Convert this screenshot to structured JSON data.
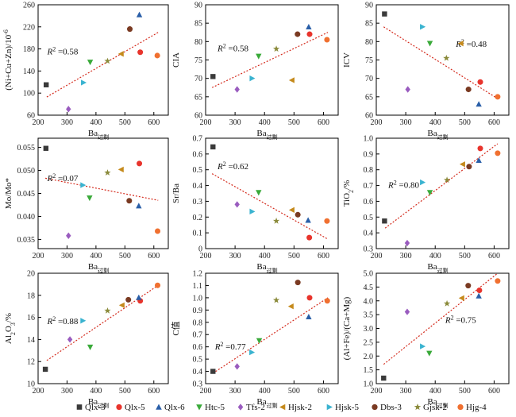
{
  "chart_data": [
    {
      "type": "scatter",
      "xlabel": "Ba",
      "xlabel_sub": "过剩",
      "ylabel": "(Ni+Cu+Zn)/10⁻⁶",
      "xlim": [
        200,
        650
      ],
      "ylim": [
        60,
        260
      ],
      "xticks": [
        200,
        300,
        400,
        500,
        600
      ],
      "yticks": [
        60,
        100,
        140,
        180,
        220,
        260
      ],
      "r2_label": "R² =0.58",
      "trend": [
        [
          230,
          93
        ],
        [
          615,
          210
        ]
      ],
      "points": {
        "Qlx-3": [
          228,
          115
        ],
        "Qlx-5": [
          553,
          174
        ],
        "Qlx-6": [
          550,
          242
        ],
        "Htc-5": [
          380,
          156
        ],
        "Tfs-2": [
          305,
          71
        ],
        "Hjsk-2": [
          487,
          171
        ],
        "Hjsk-5": [
          357,
          119
        ],
        "Dbs-3": [
          517,
          216
        ],
        "Gjsk-2": [
          440,
          158
        ],
        "Hjg-4": [
          612,
          168
        ]
      }
    },
    {
      "type": "scatter",
      "xlabel": "Ba",
      "xlabel_sub": "过剩",
      "ylabel": "CIA",
      "xlim": [
        200,
        650
      ],
      "ylim": [
        60,
        90
      ],
      "xticks": [
        200,
        300,
        400,
        500,
        600
      ],
      "yticks": [
        60,
        65,
        70,
        75,
        80,
        85,
        90
      ],
      "r2_label": "R² =0.58",
      "trend": [
        [
          222,
          67.5
        ],
        [
          615,
          82.5
        ]
      ],
      "points": {
        "Qlx-3": [
          225,
          70.5
        ],
        "Qlx-5": [
          553,
          82
        ],
        "Qlx-6": [
          550,
          84
        ],
        "Htc-5": [
          380,
          76
        ],
        "Tfs-2": [
          307,
          67
        ],
        "Hjsk-2": [
          493,
          69.5
        ],
        "Hjsk-5": [
          358,
          70
        ],
        "Dbs-3": [
          512,
          82
        ],
        "Gjsk-2": [
          440,
          78
        ],
        "Hjg-4": [
          612,
          80.5
        ]
      }
    },
    {
      "type": "scatter",
      "xlabel": "Ba",
      "xlabel_sub": "过剩",
      "ylabel": "ICV",
      "xlim": [
        200,
        650
      ],
      "ylim": [
        60,
        90
      ],
      "xticks": [
        200,
        300,
        400,
        500,
        600
      ],
      "yticks": [
        60,
        65,
        70,
        75,
        80,
        85,
        90
      ],
      "r2_label": "R² =0.48",
      "trend": [
        [
          225,
          84
        ],
        [
          612,
          64.5
        ]
      ],
      "points": {
        "Qlx-3": [
          228,
          87.5
        ],
        "Qlx-5": [
          553,
          69
        ],
        "Qlx-6": [
          548,
          63
        ],
        "Htc-5": [
          382,
          79.5
        ],
        "Tfs-2": [
          307,
          67
        ],
        "Hjsk-2": [
          487,
          79.5
        ],
        "Hjsk-5": [
          357,
          84
        ],
        "Dbs-3": [
          513,
          67
        ],
        "Gjsk-2": [
          438,
          75.5
        ],
        "Hjg-4": [
          612,
          65
        ]
      }
    },
    {
      "type": "scatter",
      "xlabel": "Ba",
      "xlabel_sub": "过剩",
      "ylabel": "Mo/Mo*",
      "xlim": [
        200,
        650
      ],
      "ylim": [
        0.033,
        0.057
      ],
      "xticks": [
        200,
        300,
        400,
        500,
        600
      ],
      "yticks": [
        0.035,
        0.04,
        0.045,
        0.05,
        0.055
      ],
      "ytick_labels": [
        "0.035",
        "0.040",
        "0.045",
        "0.050",
        "0.055"
      ],
      "r2_label": "R² =0.07",
      "trend": [
        [
          225,
          0.0483
        ],
        [
          615,
          0.0435
        ]
      ],
      "points": {
        "Qlx-3": [
          227,
          0.0548
        ],
        "Qlx-5": [
          550,
          0.0515
        ],
        "Qlx-6": [
          548,
          0.0423
        ],
        "Htc-5": [
          378,
          0.044
        ],
        "Tfs-2": [
          305,
          0.0358
        ],
        "Hjsk-2": [
          487,
          0.0502
        ],
        "Hjsk-5": [
          355,
          0.0468
        ],
        "Dbs-3": [
          515,
          0.0434
        ],
        "Gjsk-2": [
          440,
          0.0495
        ],
        "Hjg-4": [
          613,
          0.0368
        ]
      }
    },
    {
      "type": "scatter",
      "xlabel": "Ba",
      "xlabel_sub": "过剩",
      "ylabel": "Sr/Ba",
      "xlim": [
        200,
        650
      ],
      "ylim": [
        0,
        0.7
      ],
      "xticks": [
        200,
        300,
        400,
        500,
        600
      ],
      "yticks": [
        0,
        0.1,
        0.2,
        0.3,
        0.4,
        0.5,
        0.6,
        0.7
      ],
      "ytick_labels": [
        "0",
        "0.1",
        "0.2",
        "0.3",
        "0.4",
        "0.5",
        "0.6",
        "0.7"
      ],
      "r2_label": "R² =0.62",
      "trend": [
        [
          222,
          0.475
        ],
        [
          615,
          0.06
        ]
      ],
      "points": {
        "Qlx-3": [
          225,
          0.645
        ],
        "Qlx-5": [
          552,
          0.07
        ],
        "Qlx-6": [
          548,
          0.18
        ],
        "Htc-5": [
          380,
          0.355
        ],
        "Tfs-2": [
          307,
          0.28
        ],
        "Hjsk-2": [
          493,
          0.245
        ],
        "Hjsk-5": [
          358,
          0.235
        ],
        "Dbs-3": [
          513,
          0.215
        ],
        "Gjsk-2": [
          440,
          0.175
        ],
        "Hjg-4": [
          612,
          0.175
        ]
      }
    },
    {
      "type": "scatter",
      "xlabel": "Ba",
      "xlabel_sub": "过剩",
      "ylabel": "TiO₂/%",
      "xlim": [
        200,
        650
      ],
      "ylim": [
        0.3,
        1.0
      ],
      "xticks": [
        200,
        300,
        400,
        500,
        600
      ],
      "yticks": [
        0.3,
        0.4,
        0.5,
        0.6,
        0.7,
        0.8,
        0.9,
        1.0
      ],
      "ytick_labels": [
        "0.3",
        "0.4",
        "0.5",
        "0.6",
        "0.7",
        "0.8",
        "0.9",
        "1.0"
      ],
      "r2_label": "R² =0.80",
      "trend": [
        [
          230,
          0.43
        ],
        [
          612,
          0.965
        ]
      ],
      "points": {
        "Qlx-3": [
          228,
          0.475
        ],
        "Qlx-5": [
          553,
          0.935
        ],
        "Qlx-6": [
          548,
          0.86
        ],
        "Htc-5": [
          382,
          0.655
        ],
        "Tfs-2": [
          305,
          0.335
        ],
        "Hjsk-2": [
          493,
          0.835
        ],
        "Hjsk-5": [
          357,
          0.72
        ],
        "Dbs-3": [
          515,
          0.82
        ],
        "Gjsk-2": [
          440,
          0.735
        ],
        "Hjg-4": [
          612,
          0.905
        ]
      }
    },
    {
      "type": "scatter",
      "xlabel": "Ba",
      "xlabel_sub": "过剩",
      "ylabel": "Al₂O₃/%",
      "xlim": [
        200,
        650
      ],
      "ylim": [
        10,
        20
      ],
      "xticks": [
        200,
        300,
        400,
        500,
        600
      ],
      "yticks": [
        10,
        12,
        14,
        16,
        18,
        20
      ],
      "r2_label": "R² =0.88",
      "trend": [
        [
          230,
          12.1
        ],
        [
          615,
          18.9
        ]
      ],
      "points": {
        "Qlx-3": [
          225,
          11.3
        ],
        "Qlx-5": [
          553,
          17.5
        ],
        "Qlx-6": [
          548,
          17.8
        ],
        "Htc-5": [
          380,
          13.3
        ],
        "Tfs-2": [
          310,
          14.0
        ],
        "Hjsk-2": [
          490,
          17.1
        ],
        "Hjsk-5": [
          355,
          15.7
        ],
        "Dbs-3": [
          512,
          17.6
        ],
        "Gjsk-2": [
          440,
          16.6
        ],
        "Hjg-4": [
          613,
          18.9
        ]
      }
    },
    {
      "type": "scatter",
      "xlabel": "Ba",
      "xlabel_sub": "过剩",
      "ylabel": "C值",
      "xlim": [
        200,
        650
      ],
      "ylim": [
        0.3,
        1.2
      ],
      "xticks": [
        200,
        300,
        400,
        500,
        600
      ],
      "yticks": [
        0.3,
        0.4,
        0.5,
        0.6,
        0.7,
        0.8,
        0.9,
        1.0,
        1.1,
        1.2
      ],
      "ytick_labels": [
        "0.3",
        "0.4",
        "0.5",
        "0.6",
        "0.7",
        "0.8",
        "0.9",
        "1.0",
        "1.1",
        "1.2"
      ],
      "r2_label": "R² =0.77",
      "trend": [
        [
          225,
          0.385
        ],
        [
          615,
          1.0
        ]
      ],
      "points": {
        "Qlx-3": [
          225,
          0.4
        ],
        "Qlx-5": [
          553,
          1.0
        ],
        "Qlx-6": [
          550,
          0.845
        ],
        "Htc-5": [
          382,
          0.65
        ],
        "Tfs-2": [
          307,
          0.44
        ],
        "Hjsk-2": [
          490,
          0.93
        ],
        "Hjsk-5": [
          357,
          0.555
        ],
        "Dbs-3": [
          513,
          1.125
        ],
        "Gjsk-2": [
          440,
          0.98
        ],
        "Hjg-4": [
          613,
          0.975
        ]
      }
    },
    {
      "type": "scatter",
      "xlabel": "Ba",
      "xlabel_sub": "过剩",
      "ylabel": "(Al+Fe)/(Ca+Mg)",
      "xlim": [
        200,
        650
      ],
      "ylim": [
        1.0,
        5.0
      ],
      "xticks": [
        200,
        300,
        400,
        500,
        600
      ],
      "yticks": [
        1.0,
        1.5,
        2.0,
        2.5,
        3.0,
        3.5,
        4.0,
        4.5,
        5.0
      ],
      "ytick_labels": [
        "1.0",
        "1.5",
        "2.0",
        "2.5",
        "3.0",
        "3.5",
        "4.0",
        "4.5",
        "5.0"
      ],
      "r2_label": "R² =0.75",
      "trend": [
        [
          225,
          1.7
        ],
        [
          612,
          5.0
        ]
      ],
      "points": {
        "Qlx-3": [
          225,
          1.2
        ],
        "Qlx-5": [
          550,
          4.38
        ],
        "Qlx-6": [
          548,
          4.18
        ],
        "Htc-5": [
          380,
          2.1
        ],
        "Tfs-2": [
          305,
          3.6
        ],
        "Hjsk-2": [
          490,
          4.1
        ],
        "Hjsk-5": [
          357,
          2.35
        ],
        "Dbs-3": [
          512,
          4.55
        ],
        "Gjsk-2": [
          440,
          3.9
        ],
        "Hjg-4": [
          612,
          4.72
        ]
      }
    }
  ],
  "legend": [
    {
      "name": "Qlx-3",
      "shape": "square",
      "color": "#3a3a3a"
    },
    {
      "name": "Qlx-5",
      "shape": "circle",
      "color": "#e8342c"
    },
    {
      "name": "Qlx-6",
      "shape": "triangle",
      "color": "#2a5fa8"
    },
    {
      "name": "Htc-5",
      "shape": "triangle-down",
      "color": "#3aaa3a"
    },
    {
      "name": "Tfs-2",
      "shape": "diamond",
      "color": "#9a5cbf"
    },
    {
      "name": "Hjsk-2",
      "shape": "triangle-left",
      "color": "#c58a1c"
    },
    {
      "name": "Hjsk-5",
      "shape": "triangle-right",
      "color": "#3ab3d0"
    },
    {
      "name": "Dbs-3",
      "shape": "circle",
      "color": "#7a3a22"
    },
    {
      "name": "Gjsk-2",
      "shape": "star",
      "color": "#8a8a3a"
    },
    {
      "name": "Hjg-4",
      "shape": "circle",
      "color": "#f07030"
    }
  ],
  "trend_color": "#d42a1c"
}
